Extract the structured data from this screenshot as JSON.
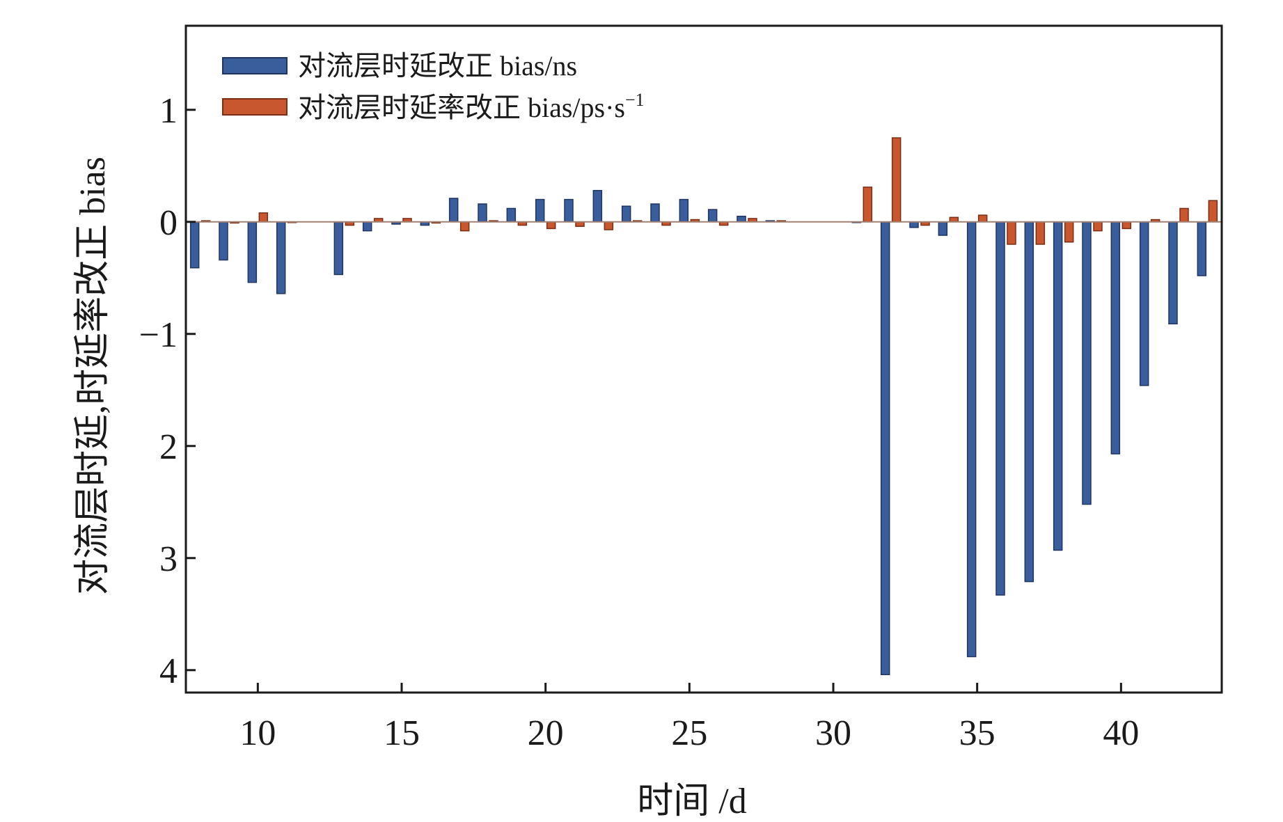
{
  "chart_data": {
    "type": "bar",
    "xlabel": "时间 /d",
    "ylabel": "对流层时延,时延率改正 bias",
    "xlim": [
      7.5,
      43.5
    ],
    "ylim": [
      -4.2,
      1.75
    ],
    "xticks": [
      10,
      15,
      20,
      25,
      30,
      35,
      40
    ],
    "yticks": [
      {
        "value": 1,
        "label": "1"
      },
      {
        "value": 0,
        "label": "0"
      },
      {
        "value": -1,
        "label": "−1"
      },
      {
        "value": -2,
        "label": "2"
      },
      {
        "value": -3,
        "label": "3"
      },
      {
        "value": -4,
        "label": "4"
      }
    ],
    "grid": false,
    "legend": "top-left",
    "x": [
      8,
      9,
      10,
      11,
      13,
      14,
      15,
      16,
      17,
      18,
      19,
      20,
      21,
      22,
      23,
      24,
      25,
      26,
      27,
      28,
      31,
      32,
      33,
      34,
      35,
      36,
      37,
      38,
      39,
      40,
      41,
      42,
      43
    ],
    "series": [
      {
        "name": "对流层时延改正 bias/ns",
        "color": "#3a5e9c",
        "values": [
          -0.41,
          -0.34,
          -0.54,
          -0.64,
          -0.47,
          -0.08,
          -0.02,
          -0.03,
          0.21,
          0.16,
          0.12,
          0.2,
          0.2,
          0.28,
          0.14,
          0.16,
          0.2,
          0.11,
          0.05,
          0.01,
          0,
          -4.04,
          -0.05,
          -0.12,
          -3.88,
          -3.33,
          -3.21,
          -2.93,
          -2.52,
          -2.07,
          -1.46,
          -0.91,
          -0.48
        ]
      },
      {
        "name": "对流层时延率改正 bias/ps·s⁻¹",
        "color": "#c8562e",
        "values": [
          0.01,
          -0.01,
          0.08,
          0.0,
          -0.03,
          0.03,
          0.03,
          -0.01,
          -0.08,
          0.01,
          -0.03,
          -0.06,
          -0.04,
          -0.07,
          0.01,
          -0.03,
          0.02,
          -0.03,
          0.03,
          0.01,
          0.31,
          0.75,
          -0.03,
          0.04,
          0.06,
          -0.2,
          -0.2,
          -0.18,
          -0.08,
          -0.06,
          0.02,
          0.12,
          0.19
        ]
      }
    ]
  },
  "legend": {
    "items": [
      {
        "text": "对流层时延改正 bias/ns",
        "color": "#3a5e9c"
      },
      {
        "text": "对流层时延率改正 bias/ps·s",
        "sup": "−1",
        "color": "#c8562e"
      }
    ]
  }
}
